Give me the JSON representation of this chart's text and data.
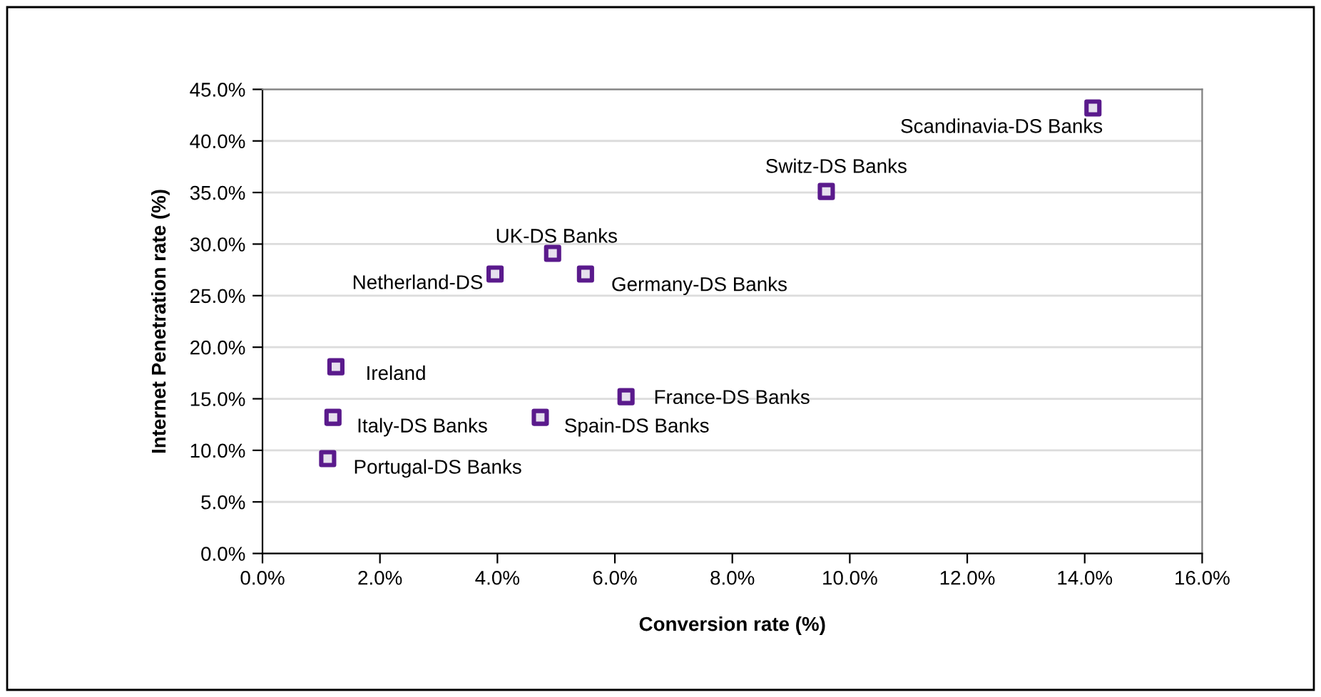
{
  "chart_data": {
    "type": "scatter",
    "xlabel": "Conversion rate (%)",
    "ylabel": "Internet Penetration rate (%)",
    "series": [
      {
        "color": "#5a1a8c",
        "marker": "square",
        "x": [
          14.14,
          9.6,
          4.94,
          3.96,
          5.5,
          1.25,
          6.19,
          1.2,
          4.73,
          1.11
        ],
        "values": [
          43.2,
          35.1,
          29.1,
          27.1,
          27.1,
          18.1,
          15.2,
          13.2,
          13.2,
          9.2
        ]
      }
    ],
    "annotations": [
      {
        "text": "Scandinavia-DS Banks",
        "x": 14.14,
        "y": 43.2
      },
      {
        "text": "Switz-DS Banks",
        "x": 9.6,
        "y": 35.1
      },
      {
        "text": "UK-DS Banks",
        "x": 4.94,
        "y": 29.1
      },
      {
        "text": "Netherland-DS",
        "x": 3.96,
        "y": 27.1
      },
      {
        "text": "Germany-DS Banks",
        "x": 5.5,
        "y": 27.1
      },
      {
        "text": "Ireland",
        "x": 1.25,
        "y": 18.1
      },
      {
        "text": "France-DS Banks",
        "x": 6.19,
        "y": 15.2
      },
      {
        "text": "Italy-DS Banks",
        "x": 1.2,
        "y": 13.2
      },
      {
        "text": "Spain-DS Banks",
        "x": 4.73,
        "y": 13.2
      },
      {
        "text": "Portugal-DS Banks",
        "x": 1.11,
        "y": 9.2
      }
    ],
    "xlim": [
      0,
      16
    ],
    "xticks": [
      {
        "value": 0,
        "label": "0.0%"
      },
      {
        "value": 2,
        "label": "2.0%"
      },
      {
        "value": 4,
        "label": "4.0%"
      },
      {
        "value": 6,
        "label": "6.0%"
      },
      {
        "value": 8,
        "label": "8.0%"
      },
      {
        "value": 10,
        "label": "10.0%"
      },
      {
        "value": 12,
        "label": "12.0%"
      },
      {
        "value": 14,
        "label": "14.0%"
      },
      {
        "value": 16,
        "label": "16.0%"
      }
    ],
    "ylim": [
      0,
      45
    ],
    "yticks": [
      {
        "value": 0,
        "label": "0.0%"
      },
      {
        "value": 5,
        "label": "5.0%"
      },
      {
        "value": 10,
        "label": "10.0%"
      },
      {
        "value": 15,
        "label": "15.0%"
      },
      {
        "value": 20,
        "label": "20.0%"
      },
      {
        "value": 25,
        "label": "25.0%"
      },
      {
        "value": 30,
        "label": "30.0%"
      },
      {
        "value": 35,
        "label": "35.0%"
      },
      {
        "value": 40,
        "label": "40.0%"
      },
      {
        "value": 45,
        "label": "45.0%"
      }
    ],
    "grid": "y",
    "legend": false
  }
}
